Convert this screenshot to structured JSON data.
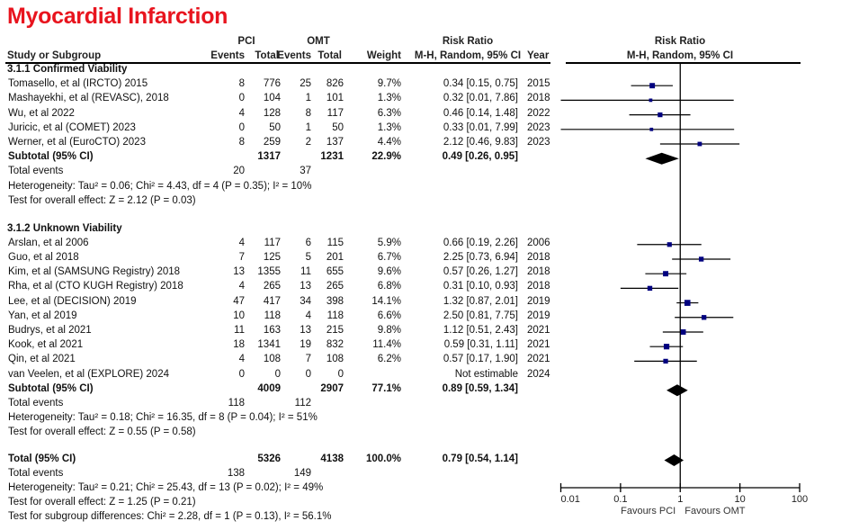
{
  "title": "Myocardial Infarction",
  "headers": {
    "study": "Study or Subgroup",
    "group1": "PCI",
    "group2": "OMT",
    "events": "Events",
    "total": "Total",
    "weight": "Weight",
    "rr_title": "Risk Ratio",
    "rr_method": "M-H, Random, 95% CI",
    "year": "Year",
    "plot_title": "Risk Ratio",
    "plot_method": "M-H, Random, 95% CI"
  },
  "chart_data": {
    "type": "forest",
    "title": "Myocardial Infarction",
    "xscale": "log",
    "xlim": [
      0.01,
      100
    ],
    "xticks": [
      "0.01",
      "0.1",
      "1",
      "10",
      "100"
    ],
    "favours_left": "Favours PCI",
    "favours_right": "Favours OMT",
    "subgroups": [
      {
        "name": "3.1.1 Confirmed Viability",
        "studies": [
          {
            "study": "Tomasello, et al (IRCTO) 2015",
            "e1": "8",
            "n1": "776",
            "e2": "25",
            "n2": "826",
            "weight": "9.7%",
            "rr_text": "0.34 [0.15, 0.75]",
            "year": "2015",
            "rr": 0.34,
            "lo": 0.15,
            "hi": 0.75
          },
          {
            "study": "Mashayekhi, et al (REVASC), 2018",
            "e1": "0",
            "n1": "104",
            "e2": "1",
            "n2": "101",
            "weight": "1.3%",
            "rr_text": "0.32 [0.01, 7.86]",
            "year": "2018",
            "rr": 0.32,
            "lo": 0.01,
            "hi": 7.86
          },
          {
            "study": "Wu, et al 2022",
            "e1": "4",
            "n1": "128",
            "e2": "8",
            "n2": "117",
            "weight": "6.3%",
            "rr_text": "0.46 [0.14, 1.48]",
            "year": "2022",
            "rr": 0.46,
            "lo": 0.14,
            "hi": 1.48
          },
          {
            "study": "Juricic, et al (COMET) 2023",
            "e1": "0",
            "n1": "50",
            "e2": "1",
            "n2": "50",
            "weight": "1.3%",
            "rr_text": "0.33 [0.01, 7.99]",
            "year": "2023",
            "rr": 0.33,
            "lo": 0.01,
            "hi": 7.99
          },
          {
            "study": "Werner, et al (EuroCTO) 2023",
            "e1": "8",
            "n1": "259",
            "e2": "2",
            "n2": "137",
            "weight": "4.4%",
            "rr_text": "2.12 [0.46, 9.83]",
            "year": "2023",
            "rr": 2.12,
            "lo": 0.46,
            "hi": 9.83
          }
        ],
        "subtotal": {
          "label": "Subtotal (95% CI)",
          "n1": "1317",
          "n2": "1231",
          "weight": "22.9%",
          "rr_text": "0.49 [0.26, 0.95]",
          "rr": 0.49,
          "lo": 0.26,
          "hi": 0.95
        },
        "total_events": {
          "label": "Total events",
          "e1": "20",
          "e2": "37"
        },
        "heterogeneity": "Heterogeneity: Tau² = 0.06; Chi² = 4.43, df = 4 (P = 0.35); I² = 10%",
        "overall_effect": "Test for overall effect: Z = 2.12 (P = 0.03)"
      },
      {
        "name": "3.1.2 Unknown Viability",
        "studies": [
          {
            "study": "Arslan, et al 2006",
            "e1": "4",
            "n1": "117",
            "e2": "6",
            "n2": "115",
            "weight": "5.9%",
            "rr_text": "0.66 [0.19, 2.26]",
            "year": "2006",
            "rr": 0.66,
            "lo": 0.19,
            "hi": 2.26
          },
          {
            "study": "Guo, et al 2018",
            "e1": "7",
            "n1": "125",
            "e2": "5",
            "n2": "201",
            "weight": "6.7%",
            "rr_text": "2.25 [0.73, 6.94]",
            "year": "2018",
            "rr": 2.25,
            "lo": 0.73,
            "hi": 6.94
          },
          {
            "study": "Kim, et al (SAMSUNG Registry) 2018",
            "e1": "13",
            "n1": "1355",
            "e2": "11",
            "n2": "655",
            "weight": "9.6%",
            "rr_text": "0.57 [0.26, 1.27]",
            "year": "2018",
            "rr": 0.57,
            "lo": 0.26,
            "hi": 1.27
          },
          {
            "study": "Rha, et al (CTO KUGH Registry) 2018",
            "e1": "4",
            "n1": "265",
            "e2": "13",
            "n2": "265",
            "weight": "6.8%",
            "rr_text": "0.31 [0.10, 0.93]",
            "year": "2018",
            "rr": 0.31,
            "lo": 0.1,
            "hi": 0.93
          },
          {
            "study": "Lee, et al (DECISION) 2019",
            "e1": "47",
            "n1": "417",
            "e2": "34",
            "n2": "398",
            "weight": "14.1%",
            "rr_text": "1.32 [0.87, 2.01]",
            "year": "2019",
            "rr": 1.32,
            "lo": 0.87,
            "hi": 2.01
          },
          {
            "study": "Yan, et al 2019",
            "e1": "10",
            "n1": "118",
            "e2": "4",
            "n2": "118",
            "weight": "6.6%",
            "rr_text": "2.50 [0.81, 7.75]",
            "year": "2019",
            "rr": 2.5,
            "lo": 0.81,
            "hi": 7.75
          },
          {
            "study": "Budrys, et al 2021",
            "e1": "11",
            "n1": "163",
            "e2": "13",
            "n2": "215",
            "weight": "9.8%",
            "rr_text": "1.12 [0.51, 2.43]",
            "year": "2021",
            "rr": 1.12,
            "lo": 0.51,
            "hi": 2.43
          },
          {
            "study": "Kook, et al 2021",
            "e1": "18",
            "n1": "1341",
            "e2": "19",
            "n2": "832",
            "weight": "11.4%",
            "rr_text": "0.59 [0.31, 1.11]",
            "year": "2021",
            "rr": 0.59,
            "lo": 0.31,
            "hi": 1.11
          },
          {
            "study": "Qin, et al 2021",
            "e1": "4",
            "n1": "108",
            "e2": "7",
            "n2": "108",
            "weight": "6.2%",
            "rr_text": "0.57 [0.17, 1.90]",
            "year": "2021",
            "rr": 0.57,
            "lo": 0.17,
            "hi": 1.9
          },
          {
            "study": "van Veelen, et al (EXPLORE) 2024",
            "e1": "0",
            "n1": "0",
            "e2": "0",
            "n2": "0",
            "weight": "",
            "rr_text": "Not estimable",
            "year": "2024",
            "rr": null,
            "lo": null,
            "hi": null
          }
        ],
        "subtotal": {
          "label": "Subtotal (95% CI)",
          "n1": "4009",
          "n2": "2907",
          "weight": "77.1%",
          "rr_text": "0.89 [0.59, 1.34]",
          "rr": 0.89,
          "lo": 0.59,
          "hi": 1.34
        },
        "total_events": {
          "label": "Total events",
          "e1": "118",
          "e2": "112"
        },
        "heterogeneity": "Heterogeneity: Tau² = 0.18; Chi² = 16.35, df = 8 (P = 0.04); I² = 51%",
        "overall_effect": "Test for overall effect: Z = 0.55 (P = 0.58)"
      }
    ],
    "total": {
      "label": "Total (95% CI)",
      "n1": "5326",
      "n2": "4138",
      "weight": "100.0%",
      "rr_text": "0.79 [0.54, 1.14]",
      "rr": 0.79,
      "lo": 0.54,
      "hi": 1.14
    },
    "total_events": {
      "label": "Total events",
      "e1": "138",
      "e2": "149"
    },
    "heterogeneity": "Heterogeneity: Tau² = 0.21; Chi² = 25.43, df = 13 (P = 0.02); I² = 49%",
    "overall_effect": "Test for overall effect: Z = 1.25 (P = 0.21)",
    "subgroup_differences": "Test for subgroup differences: Chi² = 2.28, df = 1 (P = 0.13), I² = 56.1%"
  }
}
